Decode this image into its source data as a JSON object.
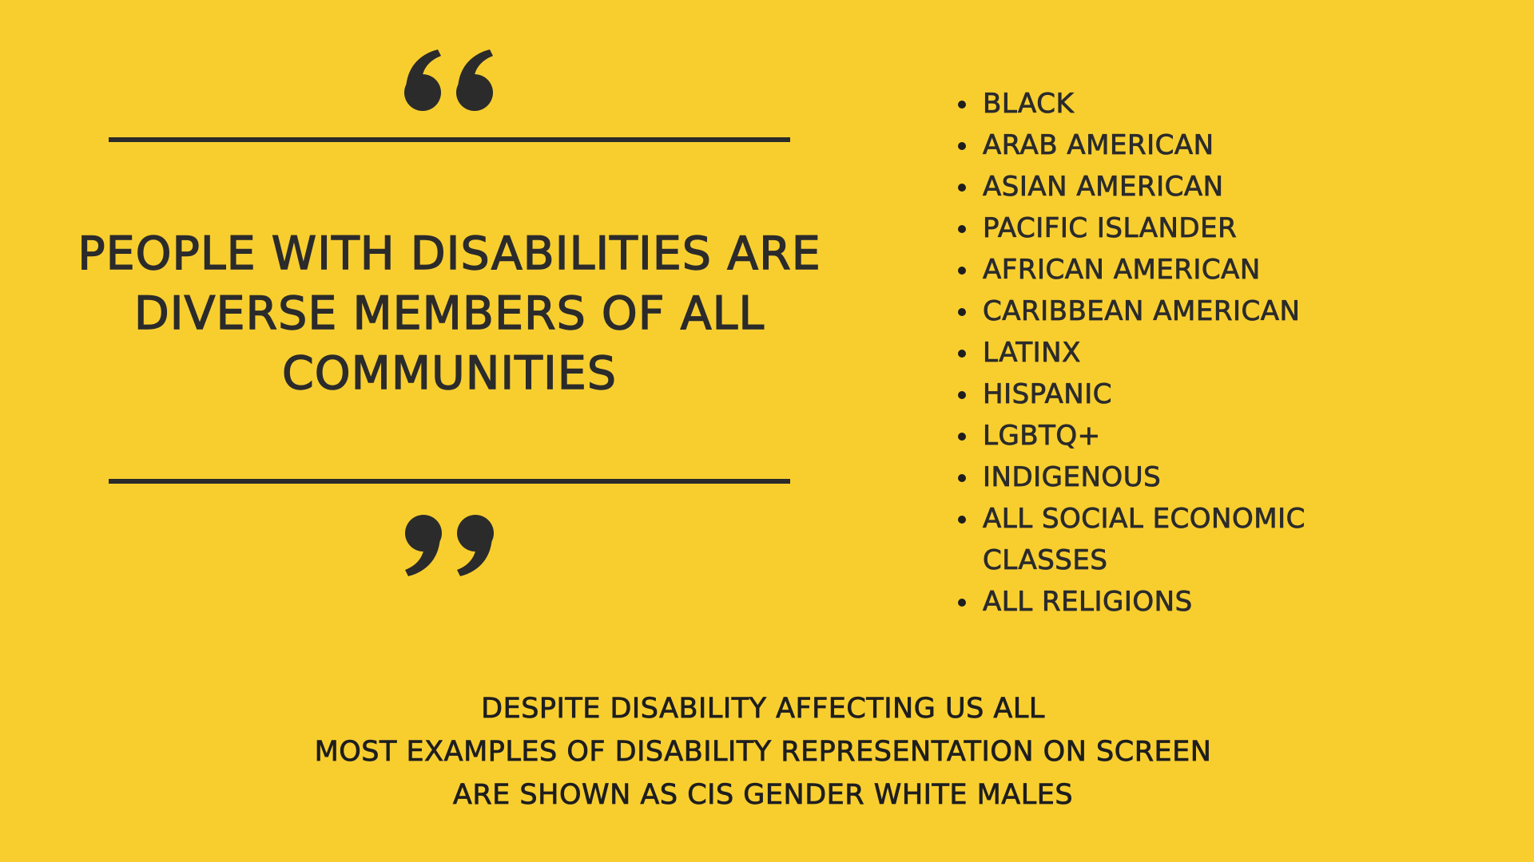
{
  "colors": {
    "background": "#F8CE2F",
    "text": "#2B2B2B"
  },
  "quote": {
    "open_icon": "open-quote-icon",
    "close_icon": "close-quote-icon",
    "headline": "PEOPLE WITH DISABILITIES ARE\nDIVERSE MEMBERS OF ALL\nCOMMUNITIES"
  },
  "communities": [
    "BLACK",
    "ARAB AMERICAN",
    "ASIAN AMERICAN",
    "PACIFIC ISLANDER",
    "AFRICAN AMERICAN",
    "CARIBBEAN AMERICAN",
    "LATINX",
    "HISPANIC",
    "LGBTQ+",
    "INDIGENOUS",
    "ALL SOCIAL ECONOMIC CLASSES",
    "ALL RELIGIONS"
  ],
  "footer": {
    "lines": [
      "DESPITE DISABILITY AFFECTING US ALL",
      "MOST EXAMPLES OF DISABILITY REPRESENTATION ON SCREEN",
      "ARE SHOWN AS CIS GENDER WHITE MALES"
    ]
  }
}
